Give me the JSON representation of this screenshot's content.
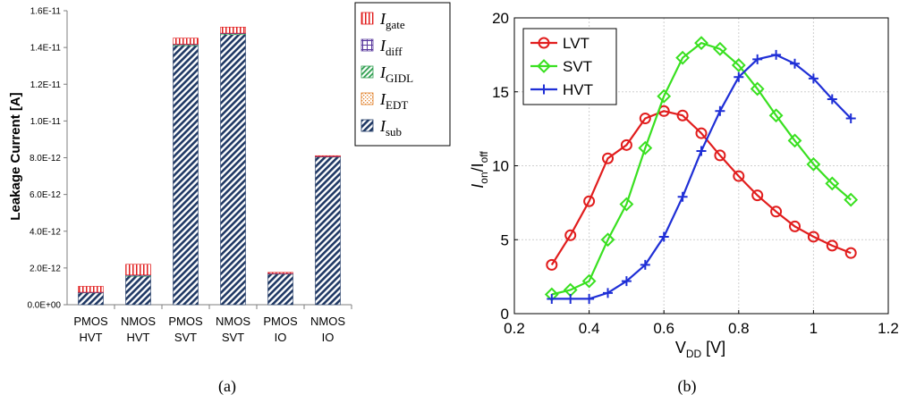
{
  "chart_data": [
    {
      "type": "bar",
      "stacked": true,
      "panel_label": "(a)",
      "ylabel": "Leakage Current [A]",
      "xlabel": "",
      "ylim": [
        0,
        1.6e-11
      ],
      "yticks": [
        0,
        2e-12,
        4e-12,
        6e-12,
        8e-12,
        1e-11,
        1.2e-11,
        1.4e-11,
        1.6e-11
      ],
      "ytick_labels": [
        "0.0E+00",
        "2.0E-12",
        "4.0E-12",
        "6.0E-12",
        "8.0E-12",
        "1.0E-11",
        "1.2E-11",
        "1.4E-11",
        "1.6E-11"
      ],
      "categories": [
        {
          "line1": "PMOS",
          "line2": "HVT"
        },
        {
          "line1": "NMOS",
          "line2": "HVT"
        },
        {
          "line1": "PMOS",
          "line2": "SVT"
        },
        {
          "line1": "NMOS",
          "line2": "SVT"
        },
        {
          "line1": "PMOS",
          "line2": "IO"
        },
        {
          "line1": "NMOS",
          "line2": "IO"
        }
      ],
      "series": [
        {
          "name": "I",
          "sub": "sub",
          "color": "#1f3864",
          "values": [
            6.5e-13,
            1.55e-12,
            1.41e-11,
            1.47e-11,
            1.68e-12,
            8.05e-12
          ]
        },
        {
          "name": "I",
          "sub": "EDT",
          "color": "#e07b20",
          "values": [
            0,
            0,
            0,
            0,
            0,
            0
          ]
        },
        {
          "name": "I",
          "sub": "GIDL",
          "color": "#2e9e4f",
          "values": [
            2e-14,
            5e-14,
            6e-14,
            6e-14,
            1e-14,
            1e-14
          ]
        },
        {
          "name": "I",
          "sub": "diff",
          "color": "#5b3a9e",
          "values": [
            1e-14,
            2e-14,
            2e-14,
            2e-14,
            1e-14,
            1e-14
          ]
        },
        {
          "name": "I",
          "sub": "gate",
          "color": "#e11d1d",
          "values": [
            3.2e-13,
            5.8e-13,
            3.3e-13,
            3.3e-13,
            6e-14,
            4e-14
          ]
        }
      ],
      "legend": [
        {
          "name": "I",
          "sub": "gate",
          "pattern": "gate"
        },
        {
          "name": "I",
          "sub": "diff",
          "pattern": "diff"
        },
        {
          "name": "I",
          "sub": "GIDL",
          "pattern": "gidl"
        },
        {
          "name": "I",
          "sub": "EDT",
          "pattern": "edt"
        },
        {
          "name": "I",
          "sub": "sub",
          "pattern": "sub"
        }
      ],
      "legend_position": "top-right"
    },
    {
      "type": "line",
      "panel_label": "(b)",
      "xlabel": "V",
      "xlabel_sub": "DD",
      "xlabel_unit": " [V]",
      "ylabel": "I",
      "ylabel_sub1": "on",
      "ylabel_mid": "/I",
      "ylabel_sub2": "off",
      "xlim": [
        0.2,
        1.2
      ],
      "ylim": [
        0,
        20
      ],
      "xticks": [
        0.2,
        0.4,
        0.6,
        0.8,
        1,
        1.2
      ],
      "xtick_labels": [
        "0.2",
        "0.4",
        "0.6",
        "0.8",
        "1",
        "1.2"
      ],
      "yticks": [
        0,
        5,
        10,
        15,
        20
      ],
      "ytick_labels": [
        "0",
        "5",
        "10",
        "15",
        "20"
      ],
      "grid": true,
      "legend_position": "top-left",
      "x": [
        0.3,
        0.35,
        0.4,
        0.45,
        0.5,
        0.55,
        0.6,
        0.65,
        0.7,
        0.75,
        0.8,
        0.85,
        0.9,
        0.95,
        1.0,
        1.05,
        1.1
      ],
      "series": [
        {
          "name": "LVT",
          "color": "#e11d1d",
          "marker": "circle",
          "values": [
            3.3,
            5.3,
            7.6,
            10.5,
            11.4,
            13.2,
            13.7,
            13.4,
            12.2,
            10.7,
            9.3,
            8.0,
            6.9,
            5.9,
            5.2,
            4.6,
            4.1
          ]
        },
        {
          "name": "SVT",
          "color": "#39e020",
          "marker": "diamond",
          "values": [
            1.3,
            1.6,
            2.2,
            5.0,
            7.4,
            11.2,
            14.7,
            17.3,
            18.3,
            17.9,
            16.8,
            15.2,
            13.4,
            11.7,
            10.1,
            8.8,
            7.7
          ]
        },
        {
          "name": "HVT",
          "color": "#1f2fd6",
          "marker": "plus",
          "values": [
            1.0,
            1.0,
            1.0,
            1.4,
            2.2,
            3.3,
            5.2,
            7.9,
            11.0,
            13.7,
            16.0,
            17.2,
            17.5,
            16.9,
            15.9,
            14.5,
            13.2
          ]
        }
      ]
    }
  ]
}
